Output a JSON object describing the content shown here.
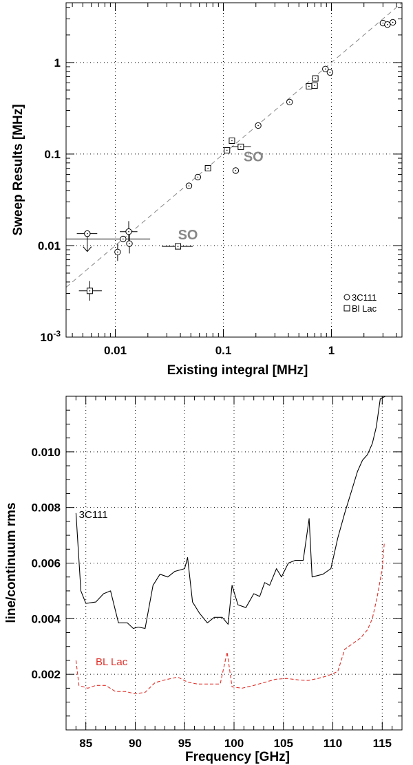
{
  "chart_data": [
    {
      "type": "scatter",
      "xlabel": "Existing integral [MHz]",
      "ylabel": "Sweep Results [MHz]",
      "xscale": "log",
      "yscale": "log",
      "xlim": [
        0.0035,
        4.5
      ],
      "ylim": [
        0.001,
        4.5
      ],
      "grid": true,
      "x_ticks": [
        {
          "value": 0.01,
          "label": "0.01"
        },
        {
          "value": 0.1,
          "label": "0.1"
        },
        {
          "value": 1,
          "label": "1"
        }
      ],
      "y_ticks": [
        {
          "value": 0.001,
          "label": "10",
          "sup": "-3"
        },
        {
          "value": 0.01,
          "label": "0.01"
        },
        {
          "value": 0.1,
          "label": "0.1"
        },
        {
          "value": 1,
          "label": "1"
        }
      ],
      "reference_line": {
        "style": "dashed",
        "points": [
          [
            0.0035,
            0.0035
          ],
          [
            4.5,
            4.5
          ]
        ]
      },
      "legend": {
        "position": "bottom-right"
      },
      "series": [
        {
          "name": "3C111",
          "marker": "circle",
          "points": [
            {
              "x": 0.0055,
              "y": 0.0135,
              "xerr": [
                0.0044,
                0.0068
              ],
              "upper_limit": true
            },
            {
              "x": 0.0105,
              "y": 0.0085,
              "yerr": [
                0.0068,
                0.0105
              ]
            },
            {
              "x": 0.0118,
              "y": 0.0118,
              "xerr": [
                0.0035,
                0.021
              ]
            },
            {
              "x": 0.0133,
              "y": 0.0142,
              "xerr": [
                0.011,
                0.016
              ],
              "yerr": [
                0.0105,
                0.0185
              ]
            },
            {
              "x": 0.0135,
              "y": 0.0105,
              "yerr": [
                0.0082,
                0.0138
              ]
            },
            {
              "x": 0.048,
              "y": 0.045
            },
            {
              "x": 0.058,
              "y": 0.056
            },
            {
              "x": 0.13,
              "y": 0.066
            },
            {
              "x": 0.21,
              "y": 0.205
            },
            {
              "x": 0.41,
              "y": 0.37
            },
            {
              "x": 0.88,
              "y": 0.85
            },
            {
              "x": 0.97,
              "y": 0.78
            },
            {
              "x": 3.0,
              "y": 2.7
            },
            {
              "x": 3.3,
              "y": 2.6
            },
            {
              "x": 3.7,
              "y": 2.75
            }
          ]
        },
        {
          "name": "Bl Lac",
          "marker": "square",
          "points": [
            {
              "x": 0.0058,
              "y": 0.0032,
              "xerr": [
                0.0046,
                0.0075
              ],
              "yerr": [
                0.0025,
                0.0041
              ]
            },
            {
              "x": 0.038,
              "y": 0.0098,
              "xerr": [
                0.027,
                0.052
              ]
            },
            {
              "x": 0.072,
              "y": 0.07
            },
            {
              "x": 0.108,
              "y": 0.11
            },
            {
              "x": 0.12,
              "y": 0.14
            },
            {
              "x": 0.145,
              "y": 0.12,
              "xerr": [
                0.12,
                0.18
              ]
            },
            {
              "x": 0.62,
              "y": 0.55
            },
            {
              "x": 0.7,
              "y": 0.56
            },
            {
              "x": 0.71,
              "y": 0.67
            }
          ]
        }
      ],
      "annotations": [
        {
          "text": "SO",
          "x": 0.19,
          "y": 0.083
        },
        {
          "text": "SO",
          "x": 0.047,
          "y": 0.0117
        }
      ]
    },
    {
      "type": "line",
      "xlabel": "Frequency [GHz]",
      "ylabel": "line/continuum rms",
      "xlim": [
        83,
        117
      ],
      "ylim": [
        0.0,
        0.012
      ],
      "grid": true,
      "x_ticks": [
        {
          "value": 85,
          "label": "85"
        },
        {
          "value": 90,
          "label": "90"
        },
        {
          "value": 95,
          "label": "95"
        },
        {
          "value": 100,
          "label": "100"
        },
        {
          "value": 105,
          "label": "105"
        },
        {
          "value": 110,
          "label": "110"
        },
        {
          "value": 115,
          "label": "115"
        }
      ],
      "y_ticks": [
        {
          "value": 0.002,
          "label": "0.002"
        },
        {
          "value": 0.004,
          "label": "0.004"
        },
        {
          "value": 0.006,
          "label": "0.006"
        },
        {
          "value": 0.008,
          "label": "0.008"
        },
        {
          "value": 0.01,
          "label": "0.010"
        }
      ],
      "series": [
        {
          "name": "3C111",
          "color": "#000000",
          "style": "solid",
          "label_at": {
            "x": 84.3,
            "y": 0.0078
          },
          "points": [
            [
              84.0,
              0.0078
            ],
            [
              84.5,
              0.005
            ],
            [
              85.0,
              0.00455
            ],
            [
              86.0,
              0.0046
            ],
            [
              86.8,
              0.0049
            ],
            [
              87.5,
              0.005
            ],
            [
              88.3,
              0.00385
            ],
            [
              89.2,
              0.00385
            ],
            [
              89.8,
              0.00365
            ],
            [
              90.3,
              0.0037
            ],
            [
              91.0,
              0.00365
            ],
            [
              91.8,
              0.0052
            ],
            [
              92.5,
              0.0056
            ],
            [
              93.3,
              0.0055
            ],
            [
              94.0,
              0.0057
            ],
            [
              95.0,
              0.0058
            ],
            [
              95.3,
              0.0062
            ],
            [
              95.8,
              0.0046
            ],
            [
              96.5,
              0.0042
            ],
            [
              97.3,
              0.00385
            ],
            [
              98.0,
              0.00405
            ],
            [
              98.8,
              0.00405
            ],
            [
              99.4,
              0.0038
            ],
            [
              99.8,
              0.0052
            ],
            [
              100.4,
              0.0045
            ],
            [
              101.2,
              0.0044
            ],
            [
              102.0,
              0.0049
            ],
            [
              102.6,
              0.0048
            ],
            [
              103.1,
              0.0053
            ],
            [
              103.6,
              0.0052
            ],
            [
              104.3,
              0.0058
            ],
            [
              104.8,
              0.0055
            ],
            [
              105.5,
              0.006
            ],
            [
              106.2,
              0.0061
            ],
            [
              107.0,
              0.0061
            ],
            [
              107.6,
              0.0076
            ],
            [
              107.9,
              0.0055
            ],
            [
              109.0,
              0.0056
            ],
            [
              109.8,
              0.0058
            ],
            [
              110.5,
              0.0069
            ],
            [
              111.2,
              0.0078
            ],
            [
              111.9,
              0.0086
            ],
            [
              112.5,
              0.0093
            ],
            [
              113.0,
              0.0097
            ],
            [
              113.5,
              0.0099
            ],
            [
              114.0,
              0.0103
            ],
            [
              114.4,
              0.0109
            ],
            [
              114.8,
              0.0119
            ],
            [
              115.3,
              0.012
            ]
          ]
        },
        {
          "name": "BL Lac",
          "color": "#e0302a",
          "style": "dashed",
          "label_at": {
            "x": 86.0,
            "y": 0.0025
          },
          "points": [
            [
              84.0,
              0.0025
            ],
            [
              84.3,
              0.0016
            ],
            [
              85.2,
              0.0015
            ],
            [
              86.0,
              0.0016
            ],
            [
              87.0,
              0.0016
            ],
            [
              88.0,
              0.00138
            ],
            [
              89.0,
              0.00138
            ],
            [
              90.0,
              0.0013
            ],
            [
              91.0,
              0.00135
            ],
            [
              92.0,
              0.0017
            ],
            [
              93.0,
              0.0018
            ],
            [
              94.3,
              0.0019
            ],
            [
              95.3,
              0.00172
            ],
            [
              96.3,
              0.00165
            ],
            [
              97.5,
              0.00165
            ],
            [
              98.6,
              0.00165
            ],
            [
              99.3,
              0.0028
            ],
            [
              99.8,
              0.00155
            ],
            [
              100.8,
              0.0015
            ],
            [
              102.0,
              0.0016
            ],
            [
              103.0,
              0.0017
            ],
            [
              104.2,
              0.00182
            ],
            [
              105.3,
              0.00185
            ],
            [
              106.5,
              0.0018
            ],
            [
              107.5,
              0.00178
            ],
            [
              108.5,
              0.00185
            ],
            [
              109.5,
              0.00195
            ],
            [
              110.5,
              0.0021
            ],
            [
              111.2,
              0.0029
            ],
            [
              112.0,
              0.0031
            ],
            [
              112.8,
              0.0033
            ],
            [
              113.5,
              0.0036
            ],
            [
              114.0,
              0.004
            ],
            [
              114.5,
              0.0048
            ],
            [
              115.0,
              0.0058
            ],
            [
              115.2,
              0.0067
            ]
          ]
        }
      ]
    }
  ]
}
